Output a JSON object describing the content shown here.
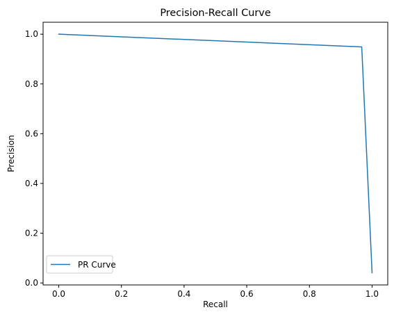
{
  "chart_data": {
    "type": "line",
    "title": "Precision-Recall Curve",
    "xlabel": "Recall",
    "ylabel": "Precision",
    "xlim": [
      -0.05,
      1.05
    ],
    "ylim": [
      -0.008,
      1.048
    ],
    "xticks": [
      0.0,
      0.2,
      0.4,
      0.6,
      0.8,
      1.0
    ],
    "xtick_labels": [
      "0.0",
      "0.2",
      "0.4",
      "0.6",
      "0.8",
      "1.0"
    ],
    "yticks": [
      0.0,
      0.2,
      0.4,
      0.6,
      0.8,
      1.0
    ],
    "ytick_labels": [
      "0.0",
      "0.2",
      "0.4",
      "0.6",
      "0.8",
      "1.0"
    ],
    "grid": false,
    "legend_position": "lower-left",
    "series": [
      {
        "name": "PR Curve",
        "color": "#1f77b4",
        "x": [
          0.0,
          0.967,
          1.0
        ],
        "y": [
          1.0,
          0.949,
          0.041
        ]
      }
    ]
  }
}
